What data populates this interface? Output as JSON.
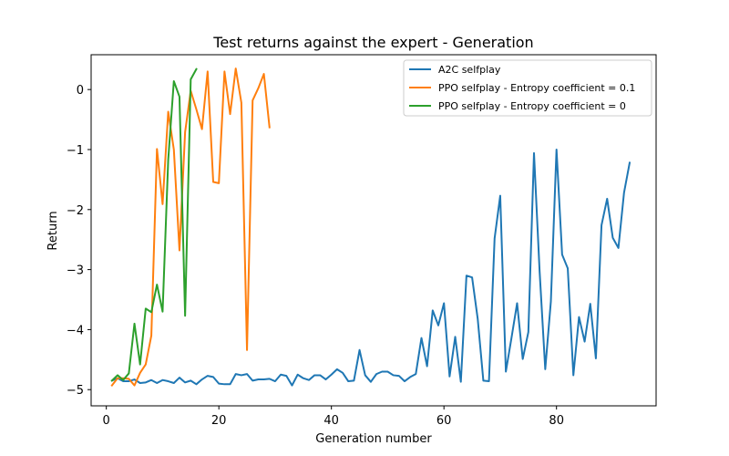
{
  "chart_data": {
    "type": "line",
    "title": "Test returns against the expert - Generation",
    "xlabel": "Generation number",
    "ylabel": "Return",
    "xlim": [
      -2.7,
      97.7
    ],
    "ylim": [
      -5.27,
      0.58
    ],
    "xticks": [
      0,
      20,
      40,
      60,
      80
    ],
    "yticks": [
      -5,
      -4,
      -3,
      -2,
      -1,
      0
    ],
    "grid": false,
    "legend_position": "top-right",
    "series": [
      {
        "name": "A2C selfplay",
        "color": "#1f77b4",
        "x": [
          1,
          2,
          3,
          4,
          5,
          6,
          7,
          8,
          9,
          10,
          11,
          12,
          13,
          14,
          15,
          16,
          17,
          18,
          19,
          20,
          21,
          22,
          23,
          24,
          25,
          26,
          27,
          28,
          29,
          30,
          31,
          32,
          33,
          34,
          35,
          36,
          37,
          38,
          39,
          40,
          41,
          42,
          43,
          44,
          45,
          46,
          47,
          48,
          49,
          50,
          51,
          52,
          53,
          54,
          55,
          56,
          57,
          58,
          59,
          60,
          61,
          62,
          63,
          64,
          65,
          66,
          67,
          68,
          69,
          70,
          71,
          72,
          73,
          74,
          75,
          76,
          77,
          78,
          79,
          80,
          81,
          82,
          83,
          84,
          85,
          86,
          87,
          88,
          89,
          90,
          91,
          92,
          93
        ],
        "y": [
          -4.85,
          -4.81,
          -4.86,
          -4.86,
          -4.83,
          -4.89,
          -4.88,
          -4.84,
          -4.89,
          -4.84,
          -4.86,
          -4.89,
          -4.8,
          -4.88,
          -4.85,
          -4.91,
          -4.83,
          -4.77,
          -4.79,
          -4.9,
          -4.91,
          -4.91,
          -4.74,
          -4.76,
          -4.74,
          -4.85,
          -4.83,
          -4.83,
          -4.82,
          -4.86,
          -4.75,
          -4.77,
          -4.93,
          -4.75,
          -4.81,
          -4.84,
          -4.76,
          -4.76,
          -4.83,
          -4.75,
          -4.66,
          -4.72,
          -4.86,
          -4.85,
          -4.34,
          -4.76,
          -4.87,
          -4.74,
          -4.7,
          -4.7,
          -4.76,
          -4.77,
          -4.86,
          -4.79,
          -4.74,
          -4.14,
          -4.61,
          -3.68,
          -3.93,
          -3.56,
          -4.78,
          -4.12,
          -4.87,
          -3.1,
          -3.13,
          -3.82,
          -4.85,
          -4.86,
          -2.48,
          -1.77,
          -4.7,
          -4.14,
          -3.56,
          -4.49,
          -4.04,
          -1.06,
          -3.03,
          -4.66,
          -3.53,
          -1.0,
          -2.75,
          -2.98,
          -4.76,
          -3.79,
          -4.2,
          -3.57,
          -4.48,
          -2.26,
          -1.82,
          -2.47,
          -2.64,
          -1.72,
          -1.22
        ]
      },
      {
        "name": "PPO selfplay - Entropy coefficient = 0.1",
        "color": "#ff7f0e",
        "x": [
          1,
          2,
          3,
          4,
          5,
          6,
          7,
          8,
          9,
          10,
          11,
          12,
          13,
          14,
          15,
          16,
          17,
          18,
          19,
          20,
          21,
          22,
          23,
          24,
          25,
          26,
          27,
          28,
          29
        ],
        "y": [
          -4.93,
          -4.81,
          -4.81,
          -4.82,
          -4.93,
          -4.72,
          -4.58,
          -4.1,
          -0.99,
          -1.91,
          -0.37,
          -1.0,
          -2.68,
          -0.71,
          -0.02,
          -0.33,
          -0.66,
          0.3,
          -1.54,
          -1.56,
          0.3,
          -0.41,
          0.35,
          -0.22,
          -4.34,
          -0.18,
          0.02,
          0.26,
          -0.63
        ]
      },
      {
        "name": "PPO selfplay - Entropy coefficient = 0",
        "color": "#2ca02c",
        "x": [
          1,
          2,
          3,
          4,
          5,
          6,
          7,
          8,
          9,
          10,
          11,
          12,
          13,
          14,
          15,
          16
        ],
        "y": [
          -4.85,
          -4.76,
          -4.84,
          -4.73,
          -3.9,
          -4.58,
          -3.65,
          -3.71,
          -3.25,
          -3.7,
          -1.17,
          0.14,
          -0.12,
          -3.77,
          0.17,
          0.34
        ]
      }
    ]
  }
}
